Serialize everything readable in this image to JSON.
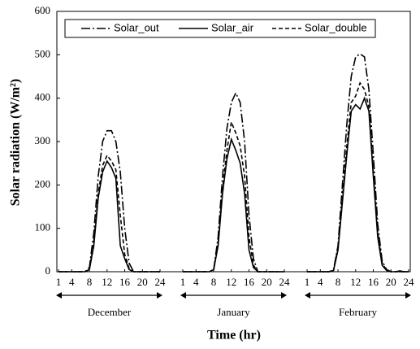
{
  "chart_data": {
    "type": "line",
    "ylabel": "Solar radiation (W/m²)",
    "xlabel": "Time (hr)",
    "ylim": [
      0,
      600
    ],
    "yticks": [
      0,
      100,
      200,
      300,
      400,
      500,
      600
    ],
    "legend": "top",
    "series": [
      {
        "name": "Solar_out",
        "color": "#000000",
        "dash": "dashdot"
      },
      {
        "name": "Solar_air",
        "color": "#000000",
        "dash": "solid"
      },
      {
        "name": "Solar_double",
        "color": "#000000",
        "dash": "dashed"
      }
    ],
    "panels": [
      {
        "label": "December",
        "xlim": [
          1,
          24
        ],
        "xticks": [
          1,
          4,
          8,
          12,
          16,
          20,
          24
        ],
        "x": [
          1,
          2,
          3,
          4,
          5,
          6,
          7,
          8,
          9,
          10,
          11,
          12,
          13,
          14,
          15,
          16,
          17,
          18,
          19,
          20,
          21,
          22,
          23,
          24
        ],
        "values": [
          [
            0,
            0,
            0,
            0,
            0,
            0,
            0,
            10,
            90,
            220,
            300,
            325,
            325,
            300,
            230,
            100,
            20,
            0,
            0,
            0,
            0,
            0,
            0,
            0
          ],
          [
            0,
            0,
            0,
            0,
            0,
            0,
            0,
            5,
            60,
            170,
            230,
            255,
            240,
            215,
            60,
            30,
            5,
            0,
            0,
            0,
            0,
            0,
            0,
            0
          ],
          [
            0,
            0,
            0,
            0,
            0,
            0,
            0,
            5,
            70,
            180,
            245,
            268,
            255,
            235,
            130,
            40,
            8,
            0,
            0,
            0,
            0,
            0,
            0,
            0
          ]
        ]
      },
      {
        "label": "January",
        "xlim": [
          1,
          24
        ],
        "xticks": [
          1,
          4,
          8,
          12,
          16,
          20,
          24
        ],
        "x": [
          1,
          2,
          3,
          4,
          5,
          6,
          7,
          8,
          9,
          10,
          11,
          12,
          13,
          14,
          15,
          16,
          17,
          18,
          19,
          20,
          21,
          22,
          23,
          24
        ],
        "values": [
          [
            0,
            0,
            0,
            0,
            0,
            0,
            0,
            5,
            80,
            220,
            330,
            390,
            412,
            390,
            300,
            130,
            30,
            0,
            0,
            0,
            0,
            0,
            0,
            0
          ],
          [
            0,
            0,
            0,
            0,
            0,
            0,
            0,
            5,
            60,
            180,
            260,
            305,
            280,
            250,
            180,
            50,
            10,
            0,
            0,
            0,
            0,
            0,
            0,
            0
          ],
          [
            0,
            0,
            0,
            0,
            0,
            0,
            0,
            5,
            65,
            190,
            280,
            345,
            320,
            290,
            220,
            80,
            15,
            0,
            0,
            0,
            0,
            0,
            0,
            0
          ]
        ]
      },
      {
        "label": "February",
        "xlim": [
          1,
          24
        ],
        "xticks": [
          1,
          4,
          8,
          12,
          16,
          20,
          24
        ],
        "x": [
          1,
          2,
          3,
          4,
          5,
          6,
          7,
          8,
          9,
          10,
          11,
          12,
          13,
          14,
          15,
          16,
          17,
          18,
          19,
          20,
          21,
          22,
          23,
          24
        ],
        "values": [
          [
            0,
            0,
            0,
            0,
            0,
            0,
            5,
            60,
            200,
            340,
            450,
            495,
            502,
            495,
            420,
            270,
            110,
            25,
            5,
            0,
            0,
            0,
            0,
            0
          ],
          [
            0,
            0,
            0,
            0,
            0,
            0,
            3,
            50,
            160,
            270,
            370,
            385,
            375,
            400,
            370,
            220,
            80,
            15,
            3,
            0,
            0,
            2,
            0,
            0
          ],
          [
            0,
            0,
            0,
            0,
            0,
            0,
            3,
            55,
            170,
            290,
            390,
            405,
            435,
            420,
            380,
            230,
            90,
            20,
            3,
            0,
            0,
            0,
            0,
            0
          ]
        ]
      }
    ]
  }
}
